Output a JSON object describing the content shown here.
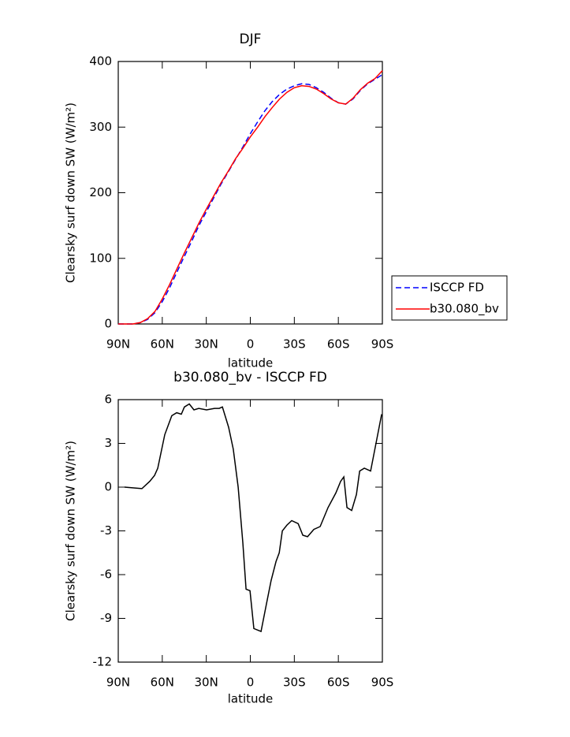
{
  "chart_data": [
    {
      "type": "line",
      "title": "DJF",
      "xlabel": "latitude",
      "ylabel": "Clearsky surf down SW (W/m²)",
      "x": [
        90,
        85,
        80,
        75,
        70,
        65,
        60,
        55,
        50,
        45,
        40,
        35,
        30,
        25,
        20,
        15,
        10,
        5,
        0,
        -5,
        -10,
        -15,
        -20,
        -25,
        -30,
        -35,
        -40,
        -45,
        -50,
        -55,
        -60,
        -65,
        -70,
        -75,
        -80,
        -85,
        -90
      ],
      "series": [
        {
          "name": "ISCCP FD",
          "color": "#0000ff",
          "dashed": true,
          "values": [
            0,
            0,
            0,
            2,
            7,
            17,
            34,
            55,
            79,
            103,
            126,
            150,
            171,
            192,
            213,
            232,
            251,
            270,
            290,
            308,
            325,
            339,
            350,
            358,
            363,
            366,
            365,
            360,
            353,
            344,
            337,
            335,
            343,
            356,
            366,
            373,
            380
          ]
        },
        {
          "name": "b30.080_bv",
          "color": "#ff0000",
          "dashed": false,
          "values": [
            0,
            0,
            0,
            2,
            8,
            19,
            38,
            60,
            84,
            108,
            131,
            154,
            175,
            195,
            215,
            233,
            252,
            268,
            285,
            300,
            316,
            330,
            343,
            353,
            360,
            363,
            362,
            358,
            351,
            343,
            337,
            335,
            344,
            357,
            367,
            374,
            386
          ]
        }
      ],
      "xlim": [
        90,
        -90
      ],
      "xticks": [
        {
          "value": 90,
          "label": "90N"
        },
        {
          "value": 60,
          "label": "60N"
        },
        {
          "value": 30,
          "label": "30N"
        },
        0,
        {
          "value": -30,
          "label": "30S"
        },
        {
          "value": -60,
          "label": "60S"
        },
        {
          "value": -90,
          "label": "90S"
        }
      ],
      "ylim": [
        0,
        400
      ],
      "yticks": [
        0,
        100,
        200,
        300,
        400
      ],
      "legend": "right"
    },
    {
      "type": "line",
      "title": "b30.080_bv - ISCCP FD",
      "xlabel": "latitude",
      "ylabel": "Clearsky surf down SW (W/m²)",
      "x": [
        85.7,
        73.9,
        68.5,
        65.3,
        63.1,
        58.3,
        53.5,
        50.2,
        47,
        44.9,
        41.6,
        38.4,
        35.2,
        29.8,
        24.4,
        21.2,
        19,
        14.8,
        11.6,
        8.3,
        5.1,
        2.9,
        0.2,
        -2.4,
        -7.3,
        -11,
        -14.2,
        -17.5,
        -19.7,
        -21.8,
        -25,
        -28.2,
        -32.6,
        -35.8,
        -39,
        -43.3,
        -47.6,
        -53,
        -58.3,
        -61.6,
        -63.7,
        -65.9,
        -69.1,
        -72.3,
        -74.5,
        -77.7,
        -82,
        -89.5
      ],
      "series": [
        {
          "name": "b30.080_bv - ISCCP FD",
          "color": "#000000",
          "dashed": false,
          "values": [
            0,
            -0.1,
            0.4,
            0.8,
            1.3,
            3.6,
            4.9,
            5.1,
            5.0,
            5.5,
            5.7,
            5.3,
            5.4,
            5.3,
            5.4,
            5.4,
            5.5,
            4.1,
            2.6,
            0,
            -3.8,
            -7.0,
            -7.1,
            -9.7,
            -9.9,
            -8,
            -6.4,
            -5.1,
            -4.5,
            -3,
            -2.6,
            -2.3,
            -2.5,
            -3.3,
            -3.4,
            -2.9,
            -2.7,
            -1.4,
            -0.4,
            0.4,
            0.7,
            -1.4,
            -1.6,
            -0.5,
            1.1,
            1.3,
            1.1,
            5.0
          ]
        }
      ],
      "xlim": [
        90,
        -90
      ],
      "xticks": [
        {
          "value": 90,
          "label": "90N"
        },
        {
          "value": 60,
          "label": "60N"
        },
        {
          "value": 30,
          "label": "30N"
        },
        0,
        {
          "value": -30,
          "label": "30S"
        },
        {
          "value": -60,
          "label": "60S"
        },
        {
          "value": -90,
          "label": "90S"
        }
      ],
      "ylim": [
        -12,
        6
      ],
      "yticks": [
        -12,
        -9,
        -6,
        -3,
        0,
        3,
        6
      ]
    }
  ]
}
